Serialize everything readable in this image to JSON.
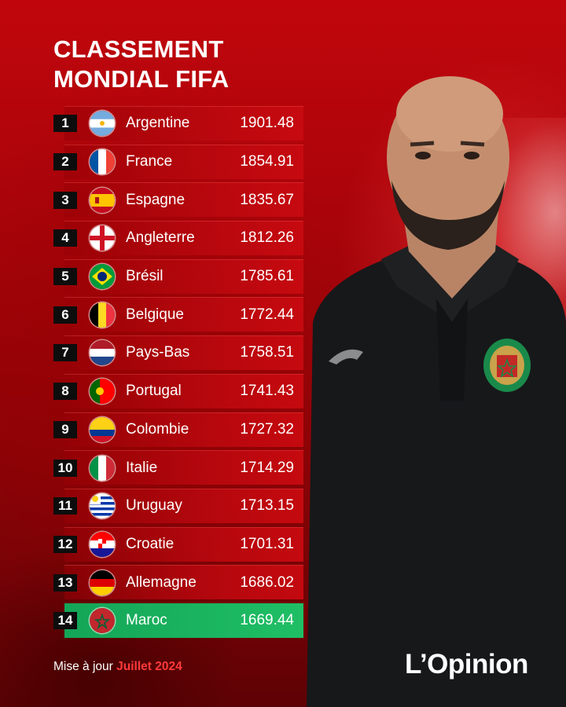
{
  "title": {
    "line1": "CLASSEMENT",
    "line2": "MONDIAL FIFA"
  },
  "colors": {
    "accent_red": "#c0060c",
    "highlight_green": "#1aaf5d",
    "month_red": "#ff3a3a"
  },
  "rankings": [
    {
      "rank": "1",
      "country": "Argentine",
      "points": "1901.48",
      "flag": "argentina-flag"
    },
    {
      "rank": "2",
      "country": "France",
      "points": "1854.91",
      "flag": "france-flag"
    },
    {
      "rank": "3",
      "country": "Espagne",
      "points": "1835.67",
      "flag": "spain-flag"
    },
    {
      "rank": "4",
      "country": "Angleterre",
      "points": "1812.26",
      "flag": "england-flag"
    },
    {
      "rank": "5",
      "country": "Brésil",
      "points": "1785.61",
      "flag": "brazil-flag"
    },
    {
      "rank": "6",
      "country": "Belgique",
      "points": "1772.44",
      "flag": "belgium-flag"
    },
    {
      "rank": "7",
      "country": "Pays-Bas",
      "points": "1758.51",
      "flag": "netherlands-flag"
    },
    {
      "rank": "8",
      "country": "Portugal",
      "points": "1741.43",
      "flag": "portugal-flag"
    },
    {
      "rank": "9",
      "country": "Colombie",
      "points": "1727.32",
      "flag": "colombia-flag"
    },
    {
      "rank": "10",
      "country": "Italie",
      "points": "1714.29",
      "flag": "italy-flag"
    },
    {
      "rank": "11",
      "country": "Uruguay",
      "points": "1713.15",
      "flag": "uruguay-flag"
    },
    {
      "rank": "12",
      "country": "Croatie",
      "points": "1701.31",
      "flag": "croatia-flag"
    },
    {
      "rank": "13",
      "country": "Allemagne",
      "points": "1686.02",
      "flag": "germany-flag"
    },
    {
      "rank": "14",
      "country": "Maroc",
      "points": "1669.44",
      "flag": "morocco-flag",
      "highlighted": true
    }
  ],
  "footer": {
    "prefix": "Mise à jour",
    "month": "Juillet 2024"
  },
  "logo": {
    "text": "L’Opinion"
  }
}
